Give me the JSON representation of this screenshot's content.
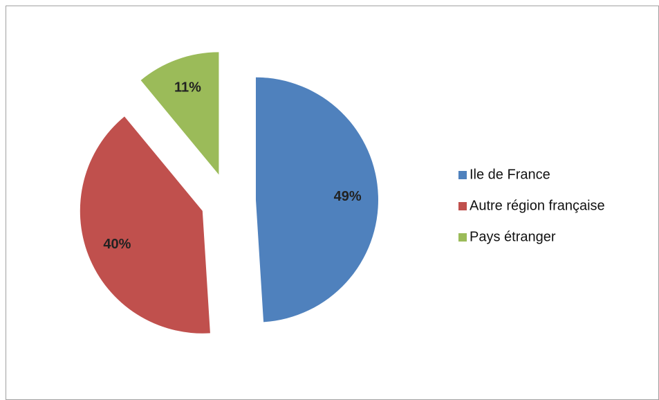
{
  "chart_data": {
    "type": "pie",
    "categories": [
      "Ile de France",
      "Autre région française",
      "Pays étranger"
    ],
    "values": [
      49,
      40,
      11
    ],
    "value_labels": [
      "49%",
      "40%",
      "11%"
    ],
    "colors": [
      "#4f81bd",
      "#c0504d",
      "#9bbb59"
    ],
    "exploded": true,
    "legend": "right"
  }
}
